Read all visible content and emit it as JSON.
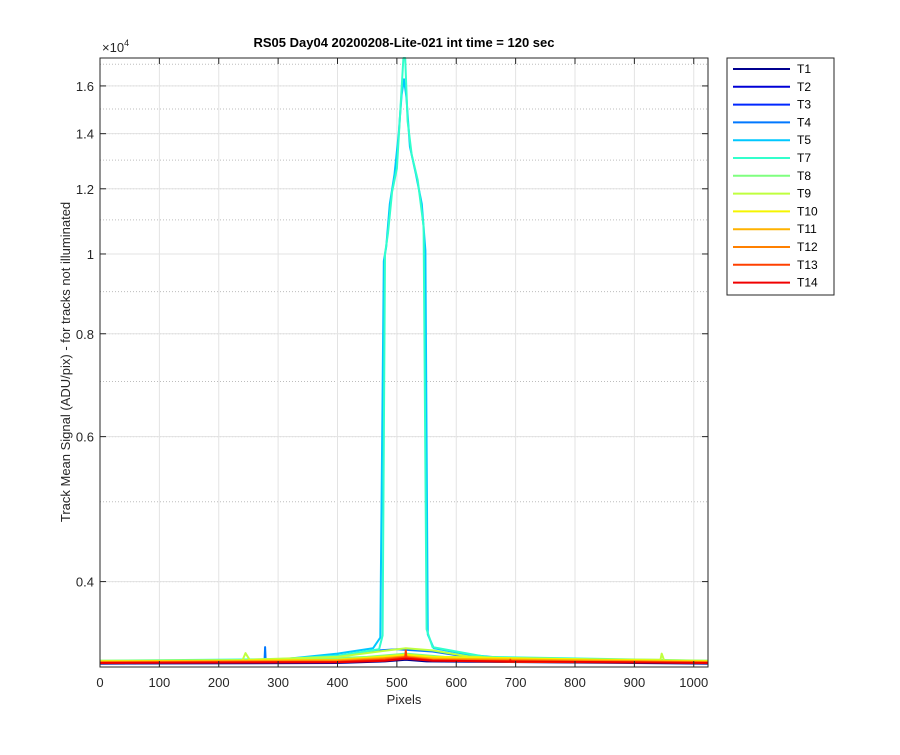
{
  "chart_data": {
    "type": "line",
    "title": "RS05 Day04 20200208-Lite-021 int time = 120 sec",
    "xlabel": "Pixels",
    "ylabel": "Track Mean Signal (ADU/pix) - for tracks not illuminated",
    "y_exponent_label": "×10",
    "y_exponent_power": "4",
    "xlim": [
      0,
      1024
    ],
    "ylim": [
      3150,
      17300
    ],
    "y_scale": "log",
    "grid": true,
    "legend_position": "outside-right-top",
    "x_ticks": [
      0,
      100,
      200,
      300,
      400,
      500,
      600,
      700,
      800,
      900,
      1000
    ],
    "x_tick_labels": [
      "0",
      "100",
      "200",
      "300",
      "400",
      "500",
      "600",
      "700",
      "800",
      "900",
      "1000"
    ],
    "y_ticks": [
      4000,
      6000,
      8000,
      10000,
      12000,
      14000,
      16000
    ],
    "y_tick_labels": [
      "0.4",
      "0.6",
      "0.8",
      "1",
      "1.2",
      "1.4",
      "1.6"
    ],
    "series": [
      {
        "name": "T1",
        "color": "#00008f",
        "points": [
          [
            0,
            3180
          ],
          [
            400,
            3185
          ],
          [
            480,
            3200
          ],
          [
            515,
            3215
          ],
          [
            550,
            3200
          ],
          [
            1024,
            3180
          ]
        ]
      },
      {
        "name": "T2",
        "color": "#0000d6",
        "points": [
          [
            0,
            3185
          ],
          [
            400,
            3190
          ],
          [
            480,
            3210
          ],
          [
            515,
            3225
          ],
          [
            550,
            3210
          ],
          [
            1024,
            3185
          ]
        ]
      },
      {
        "name": "T3",
        "color": "#0028ff",
        "points": [
          [
            0,
            3190
          ],
          [
            300,
            3200
          ],
          [
            450,
            3220
          ],
          [
            515,
            3245
          ],
          [
            580,
            3220
          ],
          [
            1024,
            3190
          ]
        ]
      },
      {
        "name": "T4",
        "color": "#0078ff",
        "points": [
          [
            0,
            3195
          ],
          [
            277,
            3200
          ],
          [
            278,
            3330
          ],
          [
            279,
            3200
          ],
          [
            300,
            3210
          ],
          [
            420,
            3260
          ],
          [
            470,
            3300
          ],
          [
            500,
            3310
          ],
          [
            560,
            3290
          ],
          [
            620,
            3240
          ],
          [
            1024,
            3195
          ]
        ]
      },
      {
        "name": "T5",
        "color": "#00c8ff",
        "points": [
          [
            0,
            3200
          ],
          [
            300,
            3215
          ],
          [
            400,
            3270
          ],
          [
            460,
            3320
          ],
          [
            472,
            3420
          ],
          [
            478,
            9800
          ],
          [
            482,
            10200
          ],
          [
            488,
            11500
          ],
          [
            496,
            12500
          ],
          [
            503,
            14000
          ],
          [
            508,
            15600
          ],
          [
            512,
            16300
          ],
          [
            516,
            15500
          ],
          [
            522,
            13500
          ],
          [
            532,
            12500
          ],
          [
            542,
            11500
          ],
          [
            548,
            10100
          ],
          [
            552,
            3450
          ],
          [
            562,
            3320
          ],
          [
            620,
            3260
          ],
          [
            700,
            3220
          ],
          [
            1024,
            3200
          ]
        ]
      },
      {
        "name": "T7",
        "color": "#32ffcc",
        "points": [
          [
            0,
            3205
          ],
          [
            300,
            3220
          ],
          [
            400,
            3250
          ],
          [
            470,
            3310
          ],
          [
            476,
            3440
          ],
          [
            480,
            10000
          ],
          [
            485,
            10600
          ],
          [
            492,
            11900
          ],
          [
            500,
            12700
          ],
          [
            506,
            15000
          ],
          [
            511,
            17300
          ],
          [
            514,
            17300
          ],
          [
            518,
            14500
          ],
          [
            525,
            13200
          ],
          [
            535,
            12300
          ],
          [
            545,
            10800
          ],
          [
            550,
            3500
          ],
          [
            560,
            3330
          ],
          [
            650,
            3240
          ],
          [
            1024,
            3205
          ]
        ]
      },
      {
        "name": "T8",
        "color": "#7fff7f",
        "points": [
          [
            0,
            3200
          ],
          [
            300,
            3210
          ],
          [
            450,
            3240
          ],
          [
            515,
            3270
          ],
          [
            580,
            3240
          ],
          [
            1024,
            3200
          ]
        ]
      },
      {
        "name": "T9",
        "color": "#bfff3f",
        "points": [
          [
            0,
            3205
          ],
          [
            240,
            3210
          ],
          [
            245,
            3275
          ],
          [
            252,
            3215
          ],
          [
            400,
            3240
          ],
          [
            470,
            3290
          ],
          [
            515,
            3320
          ],
          [
            560,
            3300
          ],
          [
            620,
            3245
          ],
          [
            700,
            3220
          ],
          [
            944,
            3215
          ],
          [
            946,
            3270
          ],
          [
            950,
            3210
          ],
          [
            1024,
            3205
          ]
        ]
      },
      {
        "name": "T10",
        "color": "#f5f500",
        "points": [
          [
            0,
            3200
          ],
          [
            400,
            3215
          ],
          [
            470,
            3240
          ],
          [
            515,
            3260
          ],
          [
            560,
            3240
          ],
          [
            1024,
            3200
          ]
        ]
      },
      {
        "name": "T11",
        "color": "#ffb200",
        "points": [
          [
            0,
            3195
          ],
          [
            400,
            3210
          ],
          [
            480,
            3230
          ],
          [
            515,
            3245
          ],
          [
            560,
            3225
          ],
          [
            1024,
            3195
          ]
        ]
      },
      {
        "name": "T12",
        "color": "#ff8000",
        "points": [
          [
            0,
            3190
          ],
          [
            400,
            3200
          ],
          [
            470,
            3220
          ],
          [
            515,
            3240
          ],
          [
            560,
            3215
          ],
          [
            1024,
            3190
          ]
        ]
      },
      {
        "name": "T13",
        "color": "#ff4000",
        "points": [
          [
            0,
            3188
          ],
          [
            400,
            3196
          ],
          [
            480,
            3215
          ],
          [
            514,
            3235
          ],
          [
            515,
            3300
          ],
          [
            516,
            3235
          ],
          [
            560,
            3210
          ],
          [
            690,
            3195
          ],
          [
            691,
            3215
          ],
          [
            692,
            3195
          ],
          [
            1024,
            3188
          ]
        ]
      },
      {
        "name": "T14",
        "color": "#f00000",
        "points": [
          [
            0,
            3185
          ],
          [
            400,
            3192
          ],
          [
            480,
            3205
          ],
          [
            515,
            3225
          ],
          [
            560,
            3205
          ],
          [
            1024,
            3185
          ]
        ]
      }
    ]
  }
}
